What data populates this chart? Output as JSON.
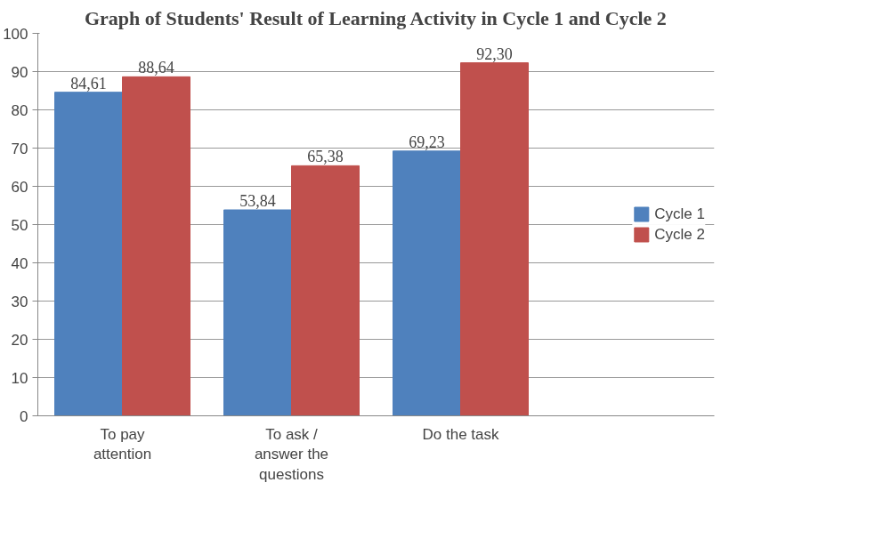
{
  "chart_data": {
    "type": "bar",
    "title": "Graph of Students' Result of Learning Activity in Cycle 1 and Cycle 2",
    "categories": [
      "To pay attention",
      "To ask / answer the questions",
      "Do the task",
      null
    ],
    "series": [
      {
        "name": "Cycle 1",
        "color": "#4f81bd",
        "values": [
          84.61,
          53.84,
          69.23,
          null
        ],
        "value_labels": [
          "84,61",
          "53,84",
          "69,23",
          null
        ]
      },
      {
        "name": "Cycle 2",
        "color": "#c0504d",
        "values": [
          88.64,
          65.38,
          92.3,
          null
        ],
        "value_labels": [
          "88,64",
          "65,38",
          "92,30",
          null
        ]
      }
    ],
    "ylim": [
      0,
      100
    ],
    "yticks": [
      0,
      10,
      20,
      30,
      40,
      50,
      60,
      70,
      80,
      90,
      100
    ],
    "grid": "y",
    "legend": "right"
  }
}
